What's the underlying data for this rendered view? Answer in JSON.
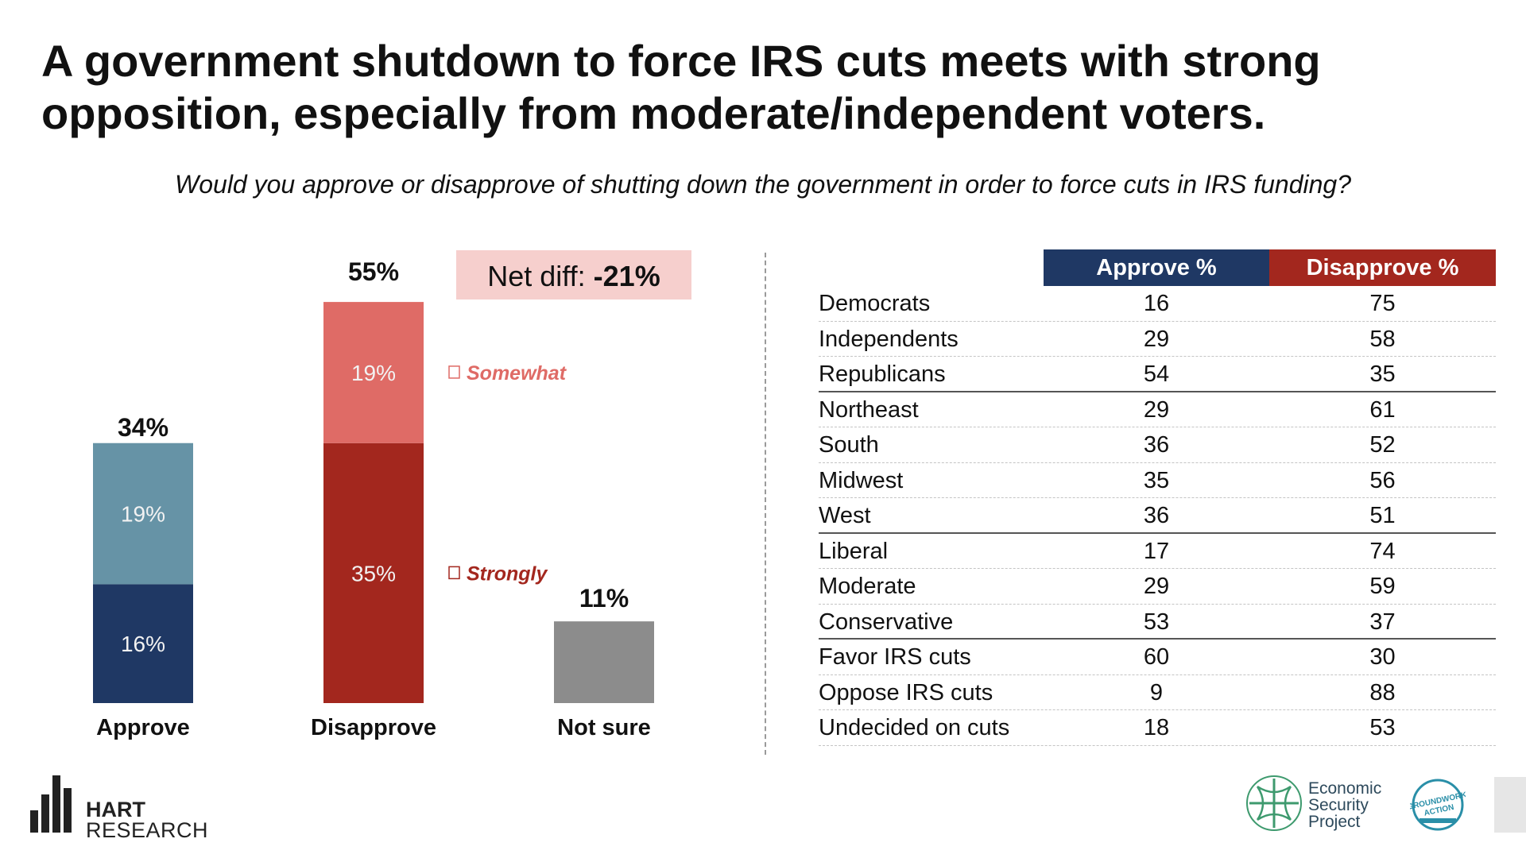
{
  "title": "A government shutdown to force IRS cuts meets with strong opposition, especially from moderate/independent voters.",
  "subtitle": "Would you approve or disapprove of shutting down the government in order to force cuts in IRS funding?",
  "net_diff": {
    "label": "Net diff: ",
    "value": "-21%"
  },
  "colors": {
    "approve_strong": "#1f3864",
    "approve_somewhat": "#6693a6",
    "disapprove_strong": "#a3271e",
    "disapprove_somewhat": "#df6b66",
    "not_sure": "#8c8c8c",
    "net_box": "#f6cfcd"
  },
  "chart_data": {
    "type": "bar",
    "stacked": true,
    "categories": [
      "Approve",
      "Disapprove",
      "Not sure"
    ],
    "totals": [
      34,
      55,
      11
    ],
    "total_labels": [
      "34%",
      "55%",
      "11%"
    ],
    "series": [
      {
        "name": "Strongly",
        "values": [
          16,
          35,
          null
        ],
        "labels": [
          "16%",
          "35%",
          ""
        ]
      },
      {
        "name": "Somewhat",
        "values": [
          19,
          19,
          null
        ],
        "labels": [
          "19%",
          "19%",
          ""
        ]
      },
      {
        "name": "",
        "values": [
          null,
          null,
          11
        ],
        "labels": [
          "",
          "",
          ""
        ]
      }
    ],
    "legend": [
      "Somewhat",
      "Strongly"
    ],
    "ylim": [
      0,
      60
    ],
    "grid": false
  },
  "table": {
    "headers": [
      "Approve %",
      "Disapprove %"
    ],
    "rows": [
      {
        "label": "Democrats",
        "approve": "16",
        "disapprove": "75"
      },
      {
        "label": "Independents",
        "approve": "29",
        "disapprove": "58"
      },
      {
        "label": "Republicans",
        "approve": "54",
        "disapprove": "35"
      },
      {
        "label": "Northeast",
        "approve": "29",
        "disapprove": "61"
      },
      {
        "label": "South",
        "approve": "36",
        "disapprove": "52"
      },
      {
        "label": "Midwest",
        "approve": "35",
        "disapprove": "56"
      },
      {
        "label": "West",
        "approve": "36",
        "disapprove": "51"
      },
      {
        "label": "Liberal",
        "approve": "17",
        "disapprove": "74"
      },
      {
        "label": "Moderate",
        "approve": "29",
        "disapprove": "59"
      },
      {
        "label": "Conservative",
        "approve": "53",
        "disapprove": "37"
      },
      {
        "label": "Favor IRS cuts",
        "approve": "60",
        "disapprove": "30"
      },
      {
        "label": "Oppose IRS cuts",
        "approve": "9",
        "disapprove": "88"
      },
      {
        "label": "Undecided on cuts",
        "approve": "18",
        "disapprove": "53"
      }
    ]
  },
  "logos": {
    "hart": [
      "HART",
      "RESEARCH"
    ],
    "esp": [
      "Economic",
      "Security",
      "Project"
    ],
    "groundwork": [
      "GROUNDWORK",
      "ACTION"
    ]
  }
}
